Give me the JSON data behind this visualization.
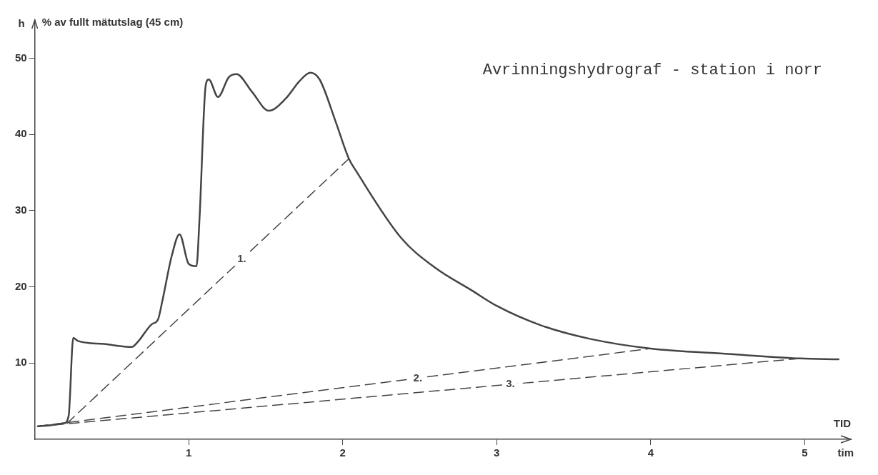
{
  "chart_data": {
    "type": "line",
    "title": "Avrinningshydrograf - station i norr",
    "xlabel": "TID",
    "ylabel": "h",
    "annotations": [
      "% av fullt mätutslag (45 cm)",
      "tim"
    ],
    "xlim": [
      0,
      5.3
    ],
    "ylim": [
      0,
      55
    ],
    "xticks": [
      1,
      2,
      3,
      4,
      5
    ],
    "yticks": [
      10,
      20,
      30,
      40,
      50
    ],
    "grid": false,
    "legend": false,
    "marker": "none",
    "series": [
      {
        "color": "#444444",
        "line_style": "solid",
        "x": [
          0.02,
          0.19,
          0.22,
          0.25,
          0.28,
          0.45,
          0.63,
          0.67,
          0.76,
          0.8,
          0.83,
          0.89,
          0.94,
          1.0,
          1.05,
          1.07,
          1.11,
          1.13,
          1.19,
          1.26,
          1.31,
          1.41,
          1.52,
          1.63,
          1.72,
          1.79,
          1.85,
          1.95,
          2.04,
          2.09,
          2.38,
          2.6,
          2.84,
          3.0,
          3.28,
          3.6,
          4.0,
          4.5,
          4.97,
          5.22
        ],
        "values": [
          1.7,
          2.1,
          3.1,
          13.3,
          12.9,
          12.5,
          12.1,
          12.8,
          15.1,
          15.7,
          18.3,
          24.1,
          26.9,
          23.0,
          22.7,
          29.0,
          46.4,
          47.2,
          44.9,
          47.5,
          47.9,
          45.6,
          43.1,
          44.7,
          47.0,
          48.1,
          47.2,
          41.9,
          36.8,
          35.1,
          26.4,
          22.5,
          19.5,
          17.5,
          15.0,
          13.2,
          11.9,
          11.2,
          10.6,
          10.5
        ]
      },
      {
        "name": "1.",
        "color": "#444444",
        "line_style": "dashed",
        "x": [
          0.21,
          2.04
        ],
        "values": [
          2.1,
          36.8
        ]
      },
      {
        "name": "2.",
        "color": "#444444",
        "line_style": "dashed",
        "x": [
          0.02,
          4.0
        ],
        "values": [
          1.7,
          11.9
        ]
      },
      {
        "name": "3.",
        "color": "#444444",
        "line_style": "dashed",
        "x": [
          0.02,
          4.97
        ],
        "values": [
          1.7,
          10.6
        ]
      }
    ]
  }
}
